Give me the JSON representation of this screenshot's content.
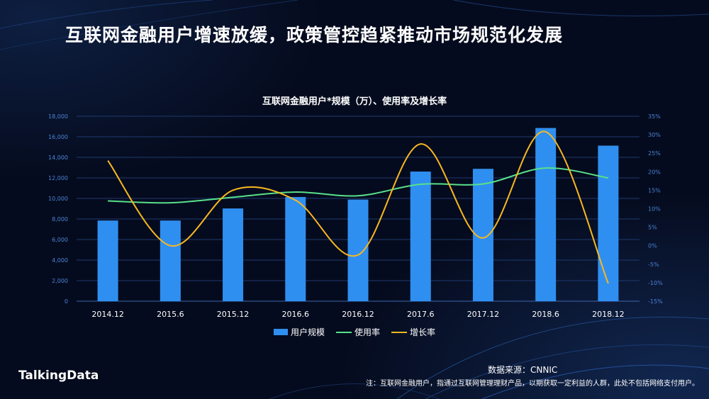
{
  "page": {
    "title": "互联网金融用户增速放缓，政策管控趋紧推动市场规范化发展",
    "source": "数据来源：CNNIC",
    "note": "注：互联网金融用户，指通过互联网管理理财产品，以期获取一定利益的人群，此处不包括网络支付用户。",
    "logo": "TalkingData"
  },
  "colors": {
    "background": "#050b1e",
    "bar": "#2f8ff0",
    "usage_line": "#58e08a",
    "growth_line": "#f7b820",
    "grid": "#1e3a6e",
    "axis_text": "#4a84d6"
  },
  "chart_data": {
    "type": "bar",
    "title": "互联网金融用户*规模（万）、使用率及增长率",
    "categories": [
      "2014.12",
      "2015.6",
      "2015.12",
      "2016.6",
      "2016.12",
      "2017.6",
      "2017.12",
      "2018.6",
      "2018.12"
    ],
    "series": [
      {
        "name": "用户规模",
        "type": "bar",
        "axis": "left",
        "values": [
          7849,
          7849,
          9026,
          10140,
          9890,
          12614,
          12881,
          16855,
          15138
        ]
      },
      {
        "name": "使用率",
        "type": "line",
        "axis": "right",
        "values": [
          12.1,
          11.6,
          13.1,
          14.5,
          13.5,
          16.6,
          16.7,
          21.0,
          18.3
        ]
      },
      {
        "name": "增长率",
        "type": "line",
        "axis": "right",
        "values": [
          23.0,
          0.0,
          15.0,
          12.3,
          -2.5,
          27.5,
          2.1,
          30.8,
          -10.2
        ]
      }
    ],
    "y_left": {
      "range": [
        0,
        18000
      ],
      "ticks": [
        "0",
        "2,000",
        "4,000",
        "6,000",
        "8,000",
        "10,000",
        "12,000",
        "14,000",
        "16,000",
        "18,000"
      ]
    },
    "y_right": {
      "range": [
        -15,
        35
      ],
      "ticks": [
        "-15%",
        "-10%",
        "-5%",
        "0%",
        "5%",
        "10%",
        "15%",
        "20%",
        "25%",
        "30%",
        "35%"
      ]
    },
    "legend": [
      "用户规模",
      "使用率",
      "增长率"
    ],
    "legend_position": "bottom",
    "grid": true
  }
}
